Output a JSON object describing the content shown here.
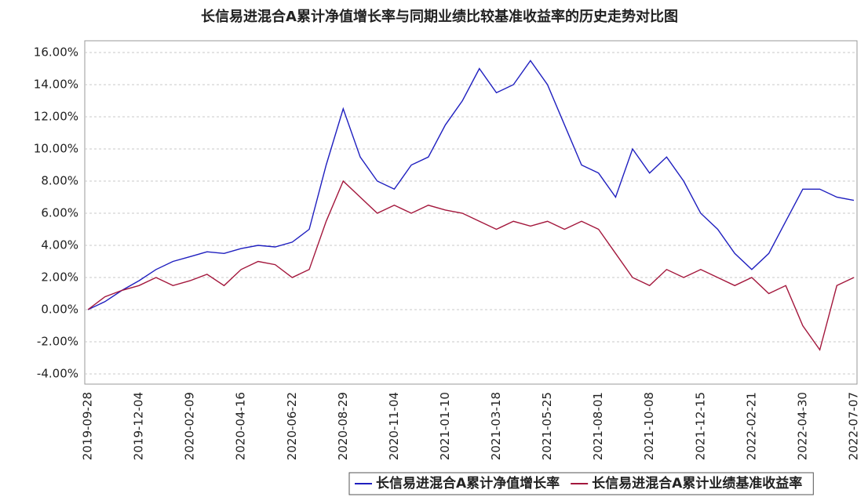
{
  "chart_data": {
    "type": "line",
    "title": "长信易进混合A累计净值增长率与同期业绩比较基准收益率的历史走势对比图",
    "categories": [
      "2019-09-28",
      null,
      null,
      "2019-12-04",
      null,
      null,
      "2020-02-09",
      null,
      null,
      "2020-04-16",
      null,
      null,
      "2020-06-22",
      null,
      null,
      "2020-08-29",
      null,
      null,
      "2020-11-04",
      null,
      null,
      "2021-01-10",
      null,
      null,
      "2021-03-18",
      null,
      null,
      "2021-05-25",
      null,
      null,
      "2021-08-01",
      null,
      null,
      "2021-10-08",
      null,
      null,
      "2021-12-15",
      null,
      null,
      "2022-02-21",
      null,
      null,
      "2022-04-30",
      null,
      null,
      "2022-07-07"
    ],
    "series": [
      {
        "name": "长信易进混合A累计净值增长率",
        "color": "#1f1fbf",
        "values": [
          0,
          0.5,
          1.2,
          1.8,
          2.5,
          3.0,
          3.3,
          3.6,
          3.5,
          3.8,
          4.0,
          3.9,
          4.2,
          5.0,
          9.0,
          12.5,
          9.5,
          8.0,
          7.5,
          9.0,
          9.5,
          11.5,
          13.0,
          15.0,
          13.5,
          14.0,
          15.5,
          14.0,
          11.5,
          9.0,
          8.5,
          7.0,
          10.0,
          8.5,
          9.5,
          8.0,
          6.0,
          5.0,
          3.5,
          2.5,
          3.5,
          5.5,
          7.5,
          7.5,
          7.0,
          6.8
        ]
      },
      {
        "name": "长信易进混合A累计业绩基准收益率",
        "color": "#a3173c",
        "values": [
          0,
          0.8,
          1.2,
          1.5,
          2.0,
          1.5,
          1.8,
          2.2,
          1.5,
          2.5,
          3.0,
          2.8,
          2.0,
          2.5,
          5.5,
          8.0,
          7.0,
          6.0,
          6.5,
          6.0,
          6.5,
          6.2,
          6.0,
          5.5,
          5.0,
          5.5,
          5.2,
          5.5,
          5.0,
          5.5,
          5.0,
          3.5,
          2.0,
          1.5,
          2.5,
          2.0,
          2.5,
          2.0,
          1.5,
          2.0,
          1.0,
          1.5,
          -1.0,
          -2.5,
          1.5,
          2.0
        ]
      }
    ],
    "ylim": [
      -4,
      16
    ],
    "yticks": [
      {
        "value": -4,
        "label": "-4.00%"
      },
      {
        "value": -2,
        "label": "-2.00%"
      },
      {
        "value": 0,
        "label": "0.00%"
      },
      {
        "value": 2,
        "label": "2.00%"
      },
      {
        "value": 4,
        "label": "4.00%"
      },
      {
        "value": 6,
        "label": "6.00%"
      },
      {
        "value": 8,
        "label": "8.00%"
      },
      {
        "value": 10,
        "label": "10.00%"
      },
      {
        "value": 12,
        "label": "12.00%"
      },
      {
        "value": 14,
        "label": "14.00%"
      },
      {
        "value": 16,
        "label": "16.00%"
      }
    ],
    "grid": true
  }
}
